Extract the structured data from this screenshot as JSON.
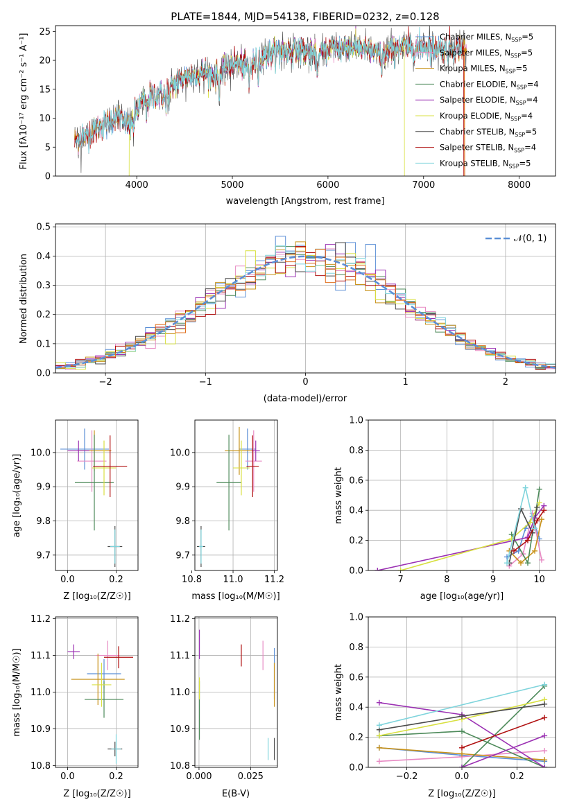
{
  "colors": {
    "series": [
      "#5b8fd6",
      "#e78ac3",
      "#c8921a",
      "#4d8a5a",
      "#9b30b3",
      "#d8e040",
      "#4a4a4a",
      "#b01010",
      "#7fd4dc"
    ],
    "gauss": "#5b8fd6",
    "extra": "#e07020"
  },
  "chart_data": [
    {
      "id": "spectrum",
      "type": "line",
      "title": "PLATE=1844, MJD=54138, FIBERID=0232, z=0.128",
      "xlabel": "wavelength [Angstrom, rest frame]",
      "ylabel": "Flux [fλ10⁻¹⁷ erg cm⁻² s⁻¹ A⁻¹]",
      "xlim": [
        3150,
        8380
      ],
      "ylim": [
        0,
        26
      ],
      "xticks": [
        "4000",
        "5000",
        "6000",
        "7000",
        "8000"
      ],
      "yticks": [
        "0",
        "5",
        "10",
        "15",
        "20",
        "25"
      ],
      "legend_position": "top-right",
      "legend": [
        "Chabrier MILES, N_SSP=5",
        "Salpeter MILES, N_SSP=5",
        "Kroupa MILES, N_SSP=5",
        "Chabrier ELODIE, N_SSP=4",
        "Salpeter ELODIE, N_SSP=4",
        "Kroupa ELODIE, N_SSP=4",
        "Chabrier STELIB, N_SSP=5",
        "Salpeter STELIB, N_SSP=4",
        "Kroupa STELIB, N_SSP=5"
      ],
      "legend_text": [
        "Chabrier MILES, N",
        "Salpeter MILES, N",
        "Kroupa MILES, N",
        "Chabrier ELODIE, N",
        "Salpeter ELODIE, N",
        "Kroupa ELODIE, N",
        "Chabrier STELIB, N",
        "Salpeter STELIB, N",
        "Kroupa STELIB, N"
      ],
      "legend_sub": "SSP",
      "legend_n": [
        "=5",
        "=5",
        "=5",
        "=4",
        "=4",
        "=4",
        "=5",
        "=4",
        "=5"
      ],
      "continuum": [
        [
          3350,
          6.3
        ],
        [
          3500,
          7.0
        ],
        [
          3650,
          9.0
        ],
        [
          3800,
          10.2
        ],
        [
          3900,
          9.0
        ],
        [
          3950,
          10.2
        ],
        [
          4050,
          12.5
        ],
        [
          4150,
          13.8
        ],
        [
          4300,
          14.2
        ],
        [
          4400,
          16.0
        ],
        [
          4500,
          17.2
        ],
        [
          4700,
          17.8
        ],
        [
          4861,
          17.3
        ],
        [
          5000,
          19.8
        ],
        [
          5175,
          18.7
        ],
        [
          5300,
          20.5
        ],
        [
          5500,
          21.5
        ],
        [
          5700,
          21.8
        ],
        [
          5890,
          20.7
        ],
        [
          6000,
          22.0
        ],
        [
          6200,
          22.4
        ],
        [
          6400,
          21.8
        ],
        [
          6563,
          21.0
        ],
        [
          6700,
          22.0
        ],
        [
          6800,
          22.4
        ],
        [
          7000,
          22.3
        ],
        [
          7200,
          22.1
        ],
        [
          7450,
          22.0
        ]
      ],
      "cutoffs": {
        "Kroupa ELODIE": 6800,
        "Salpeter STELIB": 7420,
        "Kroupa STELIB start": 3370,
        "ELODIE start": 3920
      }
    },
    {
      "id": "residuals",
      "type": "histogram",
      "xlabel": "(data-model)/error",
      "ylabel": "Normed distribution",
      "xlim": [
        -2.5,
        2.5
      ],
      "ylim": [
        0,
        0.51
      ],
      "xticks": [
        "−2",
        "−1",
        "0",
        "1",
        "2"
      ],
      "yticks": [
        "0.0",
        "0.1",
        "0.2",
        "0.3",
        "0.4",
        "0.5"
      ],
      "legend": [
        "𝒩(0, 1)"
      ],
      "legend_position": "top-right",
      "bin_width": 0.1
    },
    {
      "id": "age_vs_Z",
      "type": "scatter",
      "xlabel": "Z [log₁₀(Z/Z☉)]",
      "ylabel": "age [log₁₀(age/yr)]",
      "xlim": [
        -0.05,
        0.29
      ],
      "ylim": [
        9.655,
        10.095
      ],
      "xticks": [
        "0.0",
        "0.2"
      ],
      "yticks": [
        "9.7",
        "9.8",
        "9.9",
        "10.0"
      ],
      "points": [
        {
          "x": 0.07,
          "xerr": 0.1,
          "y": 10.01,
          "yerr": 0.06,
          "c": 0
        },
        {
          "x": 0.1,
          "xerr": 0.06,
          "y": 9.975,
          "yerr": 0.09,
          "c": 1
        },
        {
          "x": 0.11,
          "xerr": 0.07,
          "y": 10.005,
          "yerr": 0.06,
          "c": 2
        },
        {
          "x": 0.11,
          "xerr": 0.08,
          "y": 9.912,
          "yerr": 0.14,
          "c": 3
        },
        {
          "x": 0.045,
          "xerr": 0.045,
          "y": 10.005,
          "yerr": 0.03,
          "c": 4
        },
        {
          "x": 0.15,
          "xerr": 0.05,
          "y": 9.955,
          "yerr": 0.08,
          "c": 5
        },
        {
          "x": 0.195,
          "xerr": 0.03,
          "y": 9.725,
          "yerr": 0.06,
          "c": 6
        },
        {
          "x": 0.175,
          "xerr": 0.07,
          "y": 9.96,
          "yerr": 0.09,
          "c": 7
        },
        {
          "x": 0.195,
          "xerr": 0.02,
          "y": 9.725,
          "yerr": 0.05,
          "c": 8
        }
      ]
    },
    {
      "id": "age_vs_mass",
      "type": "scatter",
      "xlabel": "mass [log₁₀(M/M☉)]",
      "ylabel": "",
      "xlim": [
        10.815,
        11.215
      ],
      "ylim": [
        9.655,
        10.095
      ],
      "xticks": [
        "10.8",
        "11.0",
        "11.2"
      ],
      "yticks": [
        "9.7",
        "9.8",
        "9.9",
        "10.0"
      ],
      "points": [
        {
          "x": 11.07,
          "xerr": 0.04,
          "y": 10.01,
          "yerr": 0.06,
          "c": 0
        },
        {
          "x": 11.1,
          "xerr": 0.04,
          "y": 9.975,
          "yerr": 0.09,
          "c": 1
        },
        {
          "x": 11.03,
          "xerr": 0.07,
          "y": 10.005,
          "yerr": 0.07,
          "c": 2
        },
        {
          "x": 10.98,
          "xerr": 0.06,
          "y": 9.912,
          "yerr": 0.14,
          "c": 3
        },
        {
          "x": 11.11,
          "xerr": 0.02,
          "y": 10.005,
          "yerr": 0.03,
          "c": 4
        },
        {
          "x": 11.04,
          "xerr": 0.04,
          "y": 9.955,
          "yerr": 0.08,
          "c": 5
        },
        {
          "x": 10.845,
          "xerr": 0.02,
          "y": 9.725,
          "yerr": 0.06,
          "c": 6
        },
        {
          "x": 11.095,
          "xerr": 0.03,
          "y": 9.96,
          "yerr": 0.09,
          "c": 7
        },
        {
          "x": 10.845,
          "xerr": 0.01,
          "y": 9.725,
          "yerr": 0.05,
          "c": 8
        }
      ]
    },
    {
      "id": "massweight_vs_age",
      "type": "line",
      "xlabel": "age  [log₁₀(age/yr)]",
      "ylabel": "mass weight",
      "xlim": [
        6.3,
        10.35
      ],
      "ylim": [
        0,
        1.0
      ],
      "xticks": [
        "7",
        "8",
        "9",
        "10"
      ],
      "yticks": [
        "0.0",
        "0.2",
        "0.4",
        "0.6",
        "0.8",
        "1.0"
      ],
      "series": [
        {
          "c": 0,
          "x": [
            9.3,
            9.55,
            9.7,
            9.85,
            10.0
          ],
          "y": [
            0.09,
            0.13,
            0.28,
            0.36,
            0.21
          ]
        },
        {
          "c": 1,
          "x": [
            9.35,
            9.65,
            9.85,
            10.05
          ],
          "y": [
            0.03,
            0.11,
            0.38,
            0.07
          ]
        },
        {
          "c": 2,
          "x": [
            9.35,
            9.6,
            9.9,
            10.05
          ],
          "y": [
            0.13,
            0.05,
            0.13,
            0.34
          ]
        },
        {
          "c": 3,
          "x": [
            9.4,
            9.75,
            10.0
          ],
          "y": [
            0.24,
            0.05,
            0.54
          ]
        },
        {
          "c": 4,
          "x": [
            6.5,
            9.75,
            9.9,
            10.1
          ],
          "y": [
            0.0,
            0.22,
            0.35,
            0.43
          ]
        },
        {
          "c": 5,
          "x": [
            7.0,
            9.4,
            9.8,
            10.0
          ],
          "y": [
            0.0,
            0.21,
            0.32,
            0.45
          ]
        },
        {
          "c": 6,
          "x": [
            9.35,
            9.6,
            9.85,
            9.95
          ],
          "y": [
            0.05,
            0.41,
            0.25,
            0.42
          ]
        },
        {
          "c": 7,
          "x": [
            9.45,
            9.75,
            9.95,
            10.1
          ],
          "y": [
            0.13,
            0.2,
            0.33,
            0.4
          ]
        },
        {
          "c": 8,
          "x": [
            9.3,
            9.7,
            9.9
          ],
          "y": [
            0.05,
            0.55,
            0.28
          ]
        }
      ]
    },
    {
      "id": "mass_vs_Z",
      "type": "scatter",
      "xlabel": "Z [log₁₀(Z/Z☉)]",
      "ylabel": "mass [log₁₀(M/M☉)]",
      "xlim": [
        -0.05,
        0.29
      ],
      "ylim": [
        10.795,
        11.205
      ],
      "xticks": [
        "0.0",
        "0.2"
      ],
      "yticks": [
        "10.8",
        "10.9",
        "11.0",
        "11.1",
        "11.2"
      ],
      "points": [
        {
          "x": 0.15,
          "xerr": 0.07,
          "y": 11.05,
          "yerr": 0.04,
          "c": 0
        },
        {
          "x": 0.165,
          "xerr": 0.05,
          "y": 11.1,
          "yerr": 0.04,
          "c": 1
        },
        {
          "x": 0.125,
          "xerr": 0.11,
          "y": 11.035,
          "yerr": 0.07,
          "c": 2
        },
        {
          "x": 0.15,
          "xerr": 0.08,
          "y": 10.98,
          "yerr": 0.05,
          "c": 3
        },
        {
          "x": 0.025,
          "xerr": 0.025,
          "y": 11.11,
          "yerr": 0.02,
          "c": 4
        },
        {
          "x": 0.14,
          "xerr": 0.04,
          "y": 11.02,
          "yerr": 0.06,
          "c": 5
        },
        {
          "x": 0.195,
          "xerr": 0.03,
          "y": 10.845,
          "yerr": 0.02,
          "c": 6
        },
        {
          "x": 0.21,
          "xerr": 0.06,
          "y": 11.095,
          "yerr": 0.03,
          "c": 7
        },
        {
          "x": 0.2,
          "xerr": 0.02,
          "y": 10.845,
          "yerr": 0.04,
          "c": 8
        }
      ]
    },
    {
      "id": "mass_vs_ebv",
      "type": "scatter",
      "xlabel": "E(B-V)",
      "ylabel": "",
      "xlim": [
        -0.002,
        0.038
      ],
      "ylim": [
        10.795,
        11.205
      ],
      "xticks": [
        "0.000",
        "0.025"
      ],
      "yticks": [
        "10.8",
        "10.9",
        "11.0",
        "11.1",
        "11.2"
      ],
      "points": [
        {
          "x": 0.0365,
          "xerr": 0.0,
          "y": 11.05,
          "yerr": 0.07,
          "c": 0
        },
        {
          "x": 0.031,
          "xerr": 0.0,
          "y": 11.1,
          "yerr": 0.04,
          "c": 1
        },
        {
          "x": 0.0365,
          "xerr": 0.0,
          "y": 11.02,
          "yerr": 0.06,
          "c": 2
        },
        {
          "x": 0.0002,
          "xerr": 0.0,
          "y": 10.95,
          "yerr": 0.08,
          "c": 3
        },
        {
          "x": 0.0002,
          "xerr": 0.0,
          "y": 11.13,
          "yerr": 0.04,
          "c": 4
        },
        {
          "x": 0.0002,
          "xerr": 0.0,
          "y": 11.01,
          "yerr": 0.03,
          "c": 5
        },
        {
          "x": 0.0365,
          "xerr": 0.0,
          "y": 10.845,
          "yerr": 0.03,
          "c": 6
        },
        {
          "x": 0.0205,
          "xerr": 0.0,
          "y": 11.1,
          "yerr": 0.03,
          "c": 7
        },
        {
          "x": 0.0335,
          "xerr": 0.0,
          "y": 10.845,
          "yerr": 0.03,
          "c": 8
        }
      ]
    },
    {
      "id": "massweight_vs_Z",
      "type": "line",
      "xlabel": "Z [log₁₀(Z/Z☉)]",
      "ylabel": "mass weight",
      "xlim": [
        -0.34,
        0.34
      ],
      "ylim": [
        0,
        1.0
      ],
      "xticks": [
        "−0.2",
        "0.0",
        "0.2"
      ],
      "yticks": [
        "0.0",
        "0.2",
        "0.4",
        "0.6",
        "0.8",
        "1.0"
      ],
      "series": [
        {
          "c": 0,
          "x": [
            -0.3,
            0.0,
            0.3
          ],
          "y": [
            0.13,
            0.08,
            0.04
          ]
        },
        {
          "c": 1,
          "x": [
            -0.3,
            0.0,
            0.3
          ],
          "y": [
            0.04,
            0.07,
            0.11
          ]
        },
        {
          "c": 2,
          "x": [
            -0.3,
            0.0,
            0.3
          ],
          "y": [
            0.13,
            0.09,
            0.05
          ]
        },
        {
          "c": 3,
          "x": [
            -0.3,
            0.0,
            0.3
          ],
          "y": [
            0.21,
            0.24,
            0.0
          ]
        },
        {
          "c": 3,
          "x": [
            0.0,
            0.3
          ],
          "y": [
            0.0,
            0.54
          ]
        },
        {
          "c": 4,
          "x": [
            -0.3,
            0.0,
            0.3
          ],
          "y": [
            0.43,
            0.35,
            0.0
          ]
        },
        {
          "c": 4,
          "x": [
            0.0,
            0.3
          ],
          "y": [
            0.0,
            0.21
          ]
        },
        {
          "c": 5,
          "x": [
            -0.3,
            0.0,
            0.3
          ],
          "y": [
            0.21,
            0.32,
            0.45
          ]
        },
        {
          "c": 6,
          "x": [
            -0.3,
            0.0,
            0.3
          ],
          "y": [
            0.25,
            0.34,
            0.42
          ]
        },
        {
          "c": 7,
          "x": [
            0.0,
            0.3
          ],
          "y": [
            0.13,
            0.33
          ]
        },
        {
          "c": 8,
          "x": [
            -0.3,
            0.3
          ],
          "y": [
            0.28,
            0.55
          ]
        }
      ]
    }
  ]
}
